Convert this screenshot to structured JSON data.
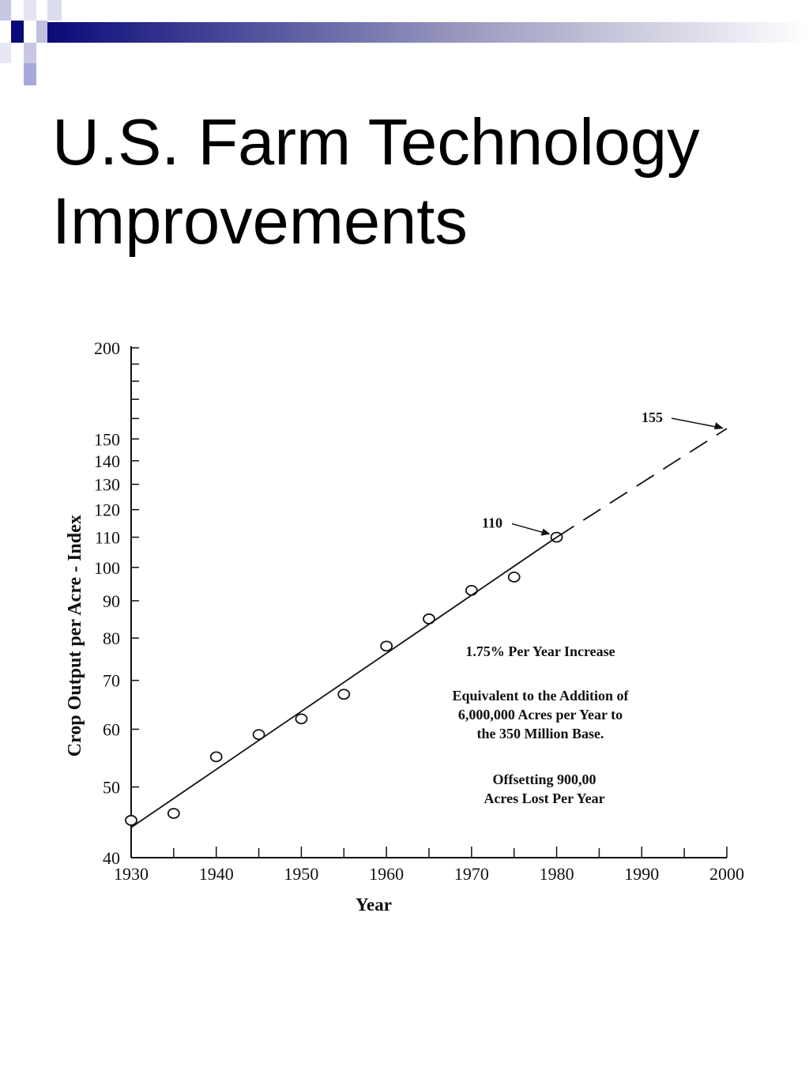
{
  "slide": {
    "title_line1": "U.S. Farm Technology",
    "title_line2": "Improvements"
  },
  "colors": {
    "accent_dark": "#0a0a7a",
    "accent_light": "#a8a8d8",
    "ink": "#111111"
  },
  "chart_data": {
    "type": "line",
    "xlabel": "Year",
    "ylabel": "Crop Output per Acre - Index",
    "y_scale": "log",
    "xlim": [
      1930,
      2000
    ],
    "ylim": [
      40,
      200
    ],
    "x_ticks": [
      "1930",
      "1940",
      "1950",
      "1960",
      "1970",
      "1980",
      "1990",
      "2000"
    ],
    "y_ticks": [
      "40",
      "50",
      "60",
      "70",
      "80",
      "90",
      "100",
      "110",
      "120",
      "130",
      "140",
      "150",
      "200"
    ],
    "series": [
      {
        "style": "points",
        "x": [
          1930,
          1935,
          1940,
          1945,
          1950,
          1955,
          1960,
          1965,
          1970,
          1975,
          1980
        ],
        "y": [
          45,
          46,
          55,
          59,
          62,
          67,
          78,
          85,
          93,
          97,
          110
        ]
      },
      {
        "style": "trend-solid",
        "x": [
          1930,
          1980
        ],
        "y": [
          44,
          110
        ]
      },
      {
        "style": "trend-dashed",
        "x": [
          1980,
          2000
        ],
        "y": [
          110,
          155
        ]
      }
    ],
    "annotations": [
      {
        "text": "110",
        "x": 1980,
        "y": 110
      },
      {
        "text": "155",
        "x": 2000,
        "y": 155
      },
      {
        "text": "1.75% Per Year Increase"
      },
      {
        "text": "Equivalent to the Addition of"
      },
      {
        "text": "6,000,000 Acres per Year to"
      },
      {
        "text": "the 350 Million Base."
      },
      {
        "text": "Offsetting 900,00"
      },
      {
        "text": "Acres Lost Per Year"
      }
    ]
  }
}
